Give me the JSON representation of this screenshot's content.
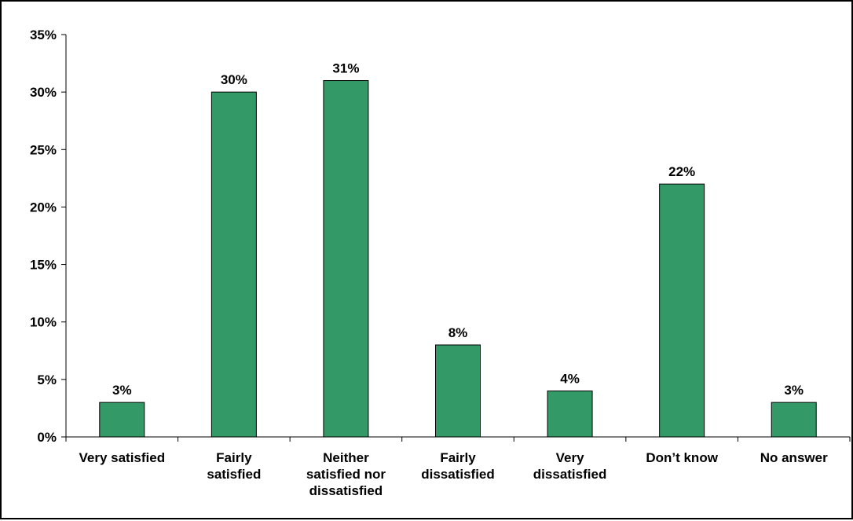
{
  "chart_data": {
    "type": "bar",
    "categories": [
      [
        "Very satisfied"
      ],
      [
        "Fairly",
        "satisfied"
      ],
      [
        "Neither",
        "satisfied nor",
        "dissatisfied"
      ],
      [
        "Fairly",
        "dissatisfied"
      ],
      [
        "Very",
        "dissatisfied"
      ],
      [
        "Don’t know"
      ],
      [
        "No answer"
      ]
    ],
    "values": [
      3,
      30,
      31,
      8,
      4,
      22,
      3
    ],
    "data_labels": [
      "3%",
      "30%",
      "31%",
      "8%",
      "4%",
      "22%",
      "3%"
    ],
    "y_ticks": [
      0,
      5,
      10,
      15,
      20,
      25,
      30,
      35
    ],
    "y_tick_labels": [
      "0%",
      "5%",
      "10%",
      "15%",
      "20%",
      "25%",
      "30%",
      "35%"
    ],
    "ylim": [
      0,
      35
    ],
    "title": "",
    "xlabel": "",
    "ylabel": "",
    "grid": false,
    "bar_color": "#339966",
    "bar_edge_color": "#000000"
  }
}
